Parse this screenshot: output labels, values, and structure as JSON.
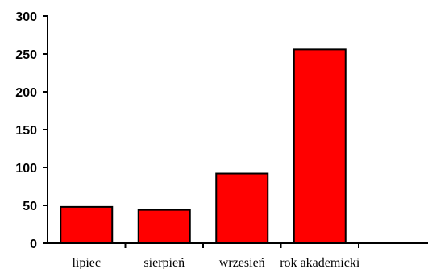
{
  "chart_data": {
    "type": "bar",
    "categories": [
      "lipiec",
      "sierpień",
      "wrzesień",
      "rok akademicki"
    ],
    "values": [
      48,
      44,
      92,
      256
    ],
    "ylim": [
      0,
      300
    ],
    "yticks": [
      0,
      50,
      100,
      150,
      200,
      250,
      300
    ],
    "ytick_labels": [
      "0",
      "50",
      "100",
      "150",
      "200",
      "250",
      "300"
    ],
    "grid": false,
    "legend": "none",
    "title": "",
    "xlabel": "",
    "ylabel": "",
    "colors": {
      "bar_fill": "#ff0000",
      "bar_stroke": "#000000",
      "axis": "#000000"
    }
  }
}
